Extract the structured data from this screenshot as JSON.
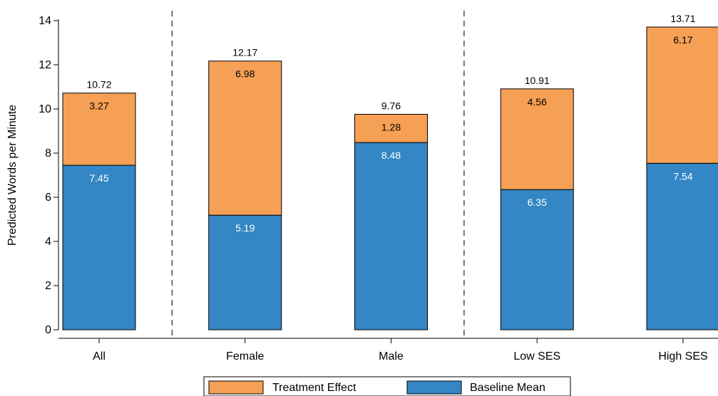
{
  "chart_data": {
    "type": "bar",
    "stacked": true,
    "categories": [
      "All",
      "Female",
      "Male",
      "Low SES",
      "High SES"
    ],
    "series": [
      {
        "name": "Baseline Mean",
        "values": [
          7.45,
          5.19,
          8.48,
          6.35,
          7.54
        ],
        "color": "#3486c4"
      },
      {
        "name": "Treatment Effect",
        "values": [
          3.27,
          6.98,
          1.28,
          4.56,
          6.17
        ],
        "color": "#f6a055"
      }
    ],
    "totals": [
      10.72,
      12.17,
      9.76,
      10.91,
      13.71
    ],
    "xlabel": "",
    "ylabel": "Predicted Words per Minute",
    "ylim": [
      0,
      14
    ],
    "yticks": [
      0,
      2,
      4,
      6,
      8,
      10,
      12,
      14
    ],
    "group_separators_after": [
      "All",
      "Male"
    ],
    "legend": {
      "position": "bottom",
      "entries": [
        "Treatment Effect",
        "Baseline Mean"
      ]
    },
    "grid": false
  }
}
